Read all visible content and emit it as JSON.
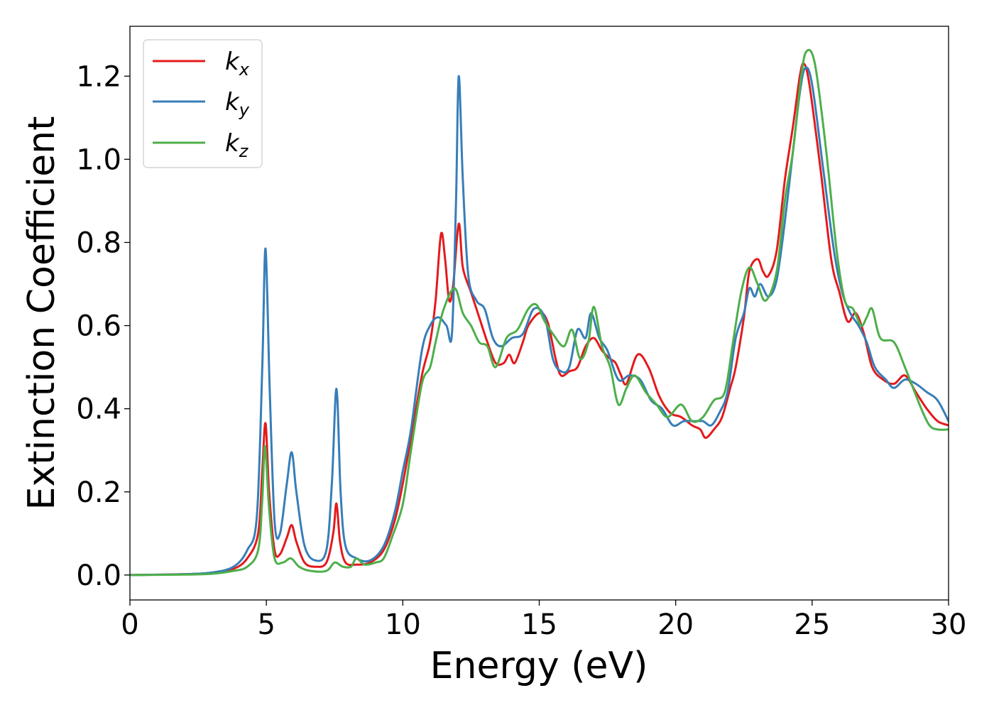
{
  "chart_data": {
    "type": "line",
    "title": "",
    "xlabel": "Energy (eV)",
    "ylabel": "Extinction Coefficient",
    "xlim": [
      0,
      30
    ],
    "ylim": [
      -0.06,
      1.32
    ],
    "xticks": [
      0,
      5,
      10,
      15,
      20,
      25,
      30
    ],
    "xtick_labels": [
      "0",
      "5",
      "10",
      "15",
      "20",
      "25",
      "30"
    ],
    "yticks": [
      0.0,
      0.2,
      0.4,
      0.6,
      0.8,
      1.0,
      1.2
    ],
    "ytick_labels": [
      "0.0",
      "0.2",
      "0.4",
      "0.6",
      "0.8",
      "1.0",
      "1.2"
    ],
    "grid": false,
    "legend_position": "top-left",
    "series": [
      {
        "name": "kx",
        "legend_base": "k",
        "legend_sub": "x",
        "color": "#e41a1c",
        "points": [
          [
            0,
            0.0
          ],
          [
            2,
            0.002
          ],
          [
            3,
            0.005
          ],
          [
            3.8,
            0.015
          ],
          [
            4.3,
            0.04
          ],
          [
            4.7,
            0.1
          ],
          [
            4.85,
            0.25
          ],
          [
            4.97,
            0.365
          ],
          [
            5.1,
            0.2
          ],
          [
            5.3,
            0.06
          ],
          [
            5.5,
            0.05
          ],
          [
            5.75,
            0.09
          ],
          [
            5.93,
            0.12
          ],
          [
            6.1,
            0.08
          ],
          [
            6.4,
            0.03
          ],
          [
            6.8,
            0.02
          ],
          [
            7.2,
            0.03
          ],
          [
            7.45,
            0.1
          ],
          [
            7.57,
            0.172
          ],
          [
            7.7,
            0.08
          ],
          [
            7.9,
            0.03
          ],
          [
            8.3,
            0.025
          ],
          [
            8.8,
            0.03
          ],
          [
            9.3,
            0.06
          ],
          [
            9.7,
            0.13
          ],
          [
            10.0,
            0.22
          ],
          [
            10.3,
            0.33
          ],
          [
            10.7,
            0.48
          ],
          [
            11.0,
            0.56
          ],
          [
            11.2,
            0.66
          ],
          [
            11.4,
            0.82
          ],
          [
            11.55,
            0.76
          ],
          [
            11.7,
            0.66
          ],
          [
            11.85,
            0.7
          ],
          [
            12.05,
            0.845
          ],
          [
            12.2,
            0.74
          ],
          [
            12.5,
            0.68
          ],
          [
            12.8,
            0.62
          ],
          [
            13.1,
            0.56
          ],
          [
            13.4,
            0.51
          ],
          [
            13.7,
            0.51
          ],
          [
            13.9,
            0.53
          ],
          [
            14.1,
            0.51
          ],
          [
            14.4,
            0.56
          ],
          [
            14.6,
            0.6
          ],
          [
            15.0,
            0.63
          ],
          [
            15.3,
            0.61
          ],
          [
            15.6,
            0.52
          ],
          [
            15.8,
            0.48
          ],
          [
            16.1,
            0.49
          ],
          [
            16.4,
            0.5
          ],
          [
            16.7,
            0.55
          ],
          [
            17.0,
            0.57
          ],
          [
            17.3,
            0.54
          ],
          [
            17.6,
            0.52
          ],
          [
            17.8,
            0.51
          ],
          [
            18.0,
            0.48
          ],
          [
            18.2,
            0.46
          ],
          [
            18.6,
            0.53
          ],
          [
            19.0,
            0.5
          ],
          [
            19.4,
            0.43
          ],
          [
            19.8,
            0.39
          ],
          [
            20.2,
            0.38
          ],
          [
            20.6,
            0.36
          ],
          [
            20.9,
            0.35
          ],
          [
            21.1,
            0.33
          ],
          [
            21.4,
            0.35
          ],
          [
            21.7,
            0.38
          ],
          [
            22.0,
            0.45
          ],
          [
            22.2,
            0.5
          ],
          [
            22.5,
            0.62
          ],
          [
            22.7,
            0.73
          ],
          [
            23.0,
            0.76
          ],
          [
            23.2,
            0.73
          ],
          [
            23.4,
            0.72
          ],
          [
            23.7,
            0.78
          ],
          [
            24.0,
            0.95
          ],
          [
            24.3,
            1.08
          ],
          [
            24.55,
            1.2
          ],
          [
            24.7,
            1.23
          ],
          [
            24.9,
            1.18
          ],
          [
            25.3,
            0.98
          ],
          [
            25.7,
            0.76
          ],
          [
            26.0,
            0.68
          ],
          [
            26.3,
            0.61
          ],
          [
            26.6,
            0.63
          ],
          [
            26.9,
            0.58
          ],
          [
            27.2,
            0.5
          ],
          [
            27.6,
            0.47
          ],
          [
            28.0,
            0.46
          ],
          [
            28.4,
            0.48
          ],
          [
            28.8,
            0.44
          ],
          [
            29.2,
            0.4
          ],
          [
            29.6,
            0.37
          ],
          [
            30.0,
            0.36
          ]
        ]
      },
      {
        "name": "ky",
        "legend_base": "k",
        "legend_sub": "y",
        "color": "#377eb8",
        "points": [
          [
            0,
            0.0
          ],
          [
            2,
            0.002
          ],
          [
            3,
            0.006
          ],
          [
            3.8,
            0.02
          ],
          [
            4.3,
            0.06
          ],
          [
            4.65,
            0.14
          ],
          [
            4.85,
            0.5
          ],
          [
            4.97,
            0.785
          ],
          [
            5.12,
            0.45
          ],
          [
            5.3,
            0.13
          ],
          [
            5.5,
            0.1
          ],
          [
            5.75,
            0.22
          ],
          [
            5.93,
            0.295
          ],
          [
            6.1,
            0.2
          ],
          [
            6.4,
            0.07
          ],
          [
            6.8,
            0.035
          ],
          [
            7.2,
            0.06
          ],
          [
            7.4,
            0.22
          ],
          [
            7.57,
            0.448
          ],
          [
            7.72,
            0.2
          ],
          [
            7.9,
            0.07
          ],
          [
            8.3,
            0.04
          ],
          [
            8.8,
            0.035
          ],
          [
            9.3,
            0.07
          ],
          [
            9.7,
            0.15
          ],
          [
            10.0,
            0.25
          ],
          [
            10.3,
            0.35
          ],
          [
            10.7,
            0.54
          ],
          [
            11.0,
            0.6
          ],
          [
            11.3,
            0.62
          ],
          [
            11.6,
            0.6
          ],
          [
            11.8,
            0.58
          ],
          [
            11.95,
            0.9
          ],
          [
            12.05,
            1.2
          ],
          [
            12.2,
            0.95
          ],
          [
            12.4,
            0.72
          ],
          [
            12.7,
            0.66
          ],
          [
            13.0,
            0.64
          ],
          [
            13.3,
            0.57
          ],
          [
            13.6,
            0.55
          ],
          [
            14.0,
            0.57
          ],
          [
            14.4,
            0.58
          ],
          [
            14.8,
            0.64
          ],
          [
            15.2,
            0.62
          ],
          [
            15.5,
            0.52
          ],
          [
            15.8,
            0.49
          ],
          [
            16.1,
            0.5
          ],
          [
            16.4,
            0.59
          ],
          [
            16.7,
            0.57
          ],
          [
            16.9,
            0.63
          ],
          [
            17.2,
            0.57
          ],
          [
            17.5,
            0.54
          ],
          [
            17.9,
            0.47
          ],
          [
            18.3,
            0.48
          ],
          [
            18.7,
            0.47
          ],
          [
            19.1,
            0.42
          ],
          [
            19.5,
            0.4
          ],
          [
            19.9,
            0.36
          ],
          [
            20.3,
            0.37
          ],
          [
            20.7,
            0.37
          ],
          [
            21.0,
            0.37
          ],
          [
            21.3,
            0.36
          ],
          [
            21.6,
            0.39
          ],
          [
            21.9,
            0.44
          ],
          [
            22.2,
            0.57
          ],
          [
            22.5,
            0.63
          ],
          [
            22.7,
            0.69
          ],
          [
            22.9,
            0.67
          ],
          [
            23.1,
            0.7
          ],
          [
            23.4,
            0.67
          ],
          [
            23.7,
            0.71
          ],
          [
            24.0,
            0.85
          ],
          [
            24.3,
            1.02
          ],
          [
            24.55,
            1.16
          ],
          [
            24.75,
            1.22
          ],
          [
            25.0,
            1.18
          ],
          [
            25.4,
            0.98
          ],
          [
            25.8,
            0.78
          ],
          [
            26.1,
            0.68
          ],
          [
            26.4,
            0.63
          ],
          [
            26.7,
            0.6
          ],
          [
            27.0,
            0.56
          ],
          [
            27.3,
            0.5
          ],
          [
            27.7,
            0.47
          ],
          [
            28.0,
            0.45
          ],
          [
            28.4,
            0.47
          ],
          [
            28.8,
            0.46
          ],
          [
            29.2,
            0.44
          ],
          [
            29.6,
            0.42
          ],
          [
            30.0,
            0.37
          ]
        ]
      },
      {
        "name": "kz",
        "legend_base": "k",
        "legend_sub": "z",
        "color": "#4daf4a",
        "points": [
          [
            0,
            0.0
          ],
          [
            2,
            0.001
          ],
          [
            3,
            0.003
          ],
          [
            3.8,
            0.01
          ],
          [
            4.3,
            0.02
          ],
          [
            4.7,
            0.06
          ],
          [
            4.85,
            0.18
          ],
          [
            4.95,
            0.31
          ],
          [
            5.1,
            0.16
          ],
          [
            5.3,
            0.04
          ],
          [
            5.6,
            0.03
          ],
          [
            5.9,
            0.04
          ],
          [
            6.2,
            0.02
          ],
          [
            6.6,
            0.01
          ],
          [
            7.2,
            0.01
          ],
          [
            7.5,
            0.03
          ],
          [
            7.8,
            0.02
          ],
          [
            8.1,
            0.02
          ],
          [
            8.3,
            0.04
          ],
          [
            8.6,
            0.025
          ],
          [
            9.0,
            0.03
          ],
          [
            9.3,
            0.04
          ],
          [
            9.6,
            0.09
          ],
          [
            10.0,
            0.17
          ],
          [
            10.3,
            0.3
          ],
          [
            10.7,
            0.46
          ],
          [
            11.0,
            0.5
          ],
          [
            11.2,
            0.56
          ],
          [
            11.5,
            0.64
          ],
          [
            11.9,
            0.69
          ],
          [
            12.2,
            0.63
          ],
          [
            12.5,
            0.6
          ],
          [
            12.8,
            0.56
          ],
          [
            13.1,
            0.55
          ],
          [
            13.4,
            0.5
          ],
          [
            13.8,
            0.57
          ],
          [
            14.2,
            0.59
          ],
          [
            14.6,
            0.64
          ],
          [
            14.9,
            0.65
          ],
          [
            15.2,
            0.61
          ],
          [
            15.5,
            0.58
          ],
          [
            15.9,
            0.55
          ],
          [
            16.2,
            0.59
          ],
          [
            16.5,
            0.52
          ],
          [
            16.8,
            0.56
          ],
          [
            17.0,
            0.645
          ],
          [
            17.3,
            0.55
          ],
          [
            17.6,
            0.5
          ],
          [
            17.9,
            0.41
          ],
          [
            18.2,
            0.45
          ],
          [
            18.5,
            0.48
          ],
          [
            18.9,
            0.44
          ],
          [
            19.3,
            0.41
          ],
          [
            19.7,
            0.38
          ],
          [
            20.2,
            0.41
          ],
          [
            20.6,
            0.37
          ],
          [
            21.0,
            0.38
          ],
          [
            21.4,
            0.42
          ],
          [
            21.8,
            0.44
          ],
          [
            22.1,
            0.56
          ],
          [
            22.4,
            0.68
          ],
          [
            22.7,
            0.74
          ],
          [
            23.0,
            0.7
          ],
          [
            23.3,
            0.66
          ],
          [
            23.7,
            0.73
          ],
          [
            24.0,
            0.9
          ],
          [
            24.3,
            1.02
          ],
          [
            24.6,
            1.2
          ],
          [
            24.8,
            1.26
          ],
          [
            25.1,
            1.23
          ],
          [
            25.5,
            1.03
          ],
          [
            25.9,
            0.78
          ],
          [
            26.2,
            0.66
          ],
          [
            26.5,
            0.64
          ],
          [
            26.8,
            0.6
          ],
          [
            27.0,
            0.62
          ],
          [
            27.2,
            0.64
          ],
          [
            27.5,
            0.57
          ],
          [
            28.0,
            0.56
          ],
          [
            28.4,
            0.5
          ],
          [
            28.7,
            0.45
          ],
          [
            29.0,
            0.4
          ],
          [
            29.3,
            0.36
          ],
          [
            29.6,
            0.35
          ],
          [
            30.0,
            0.35
          ]
        ]
      }
    ]
  }
}
